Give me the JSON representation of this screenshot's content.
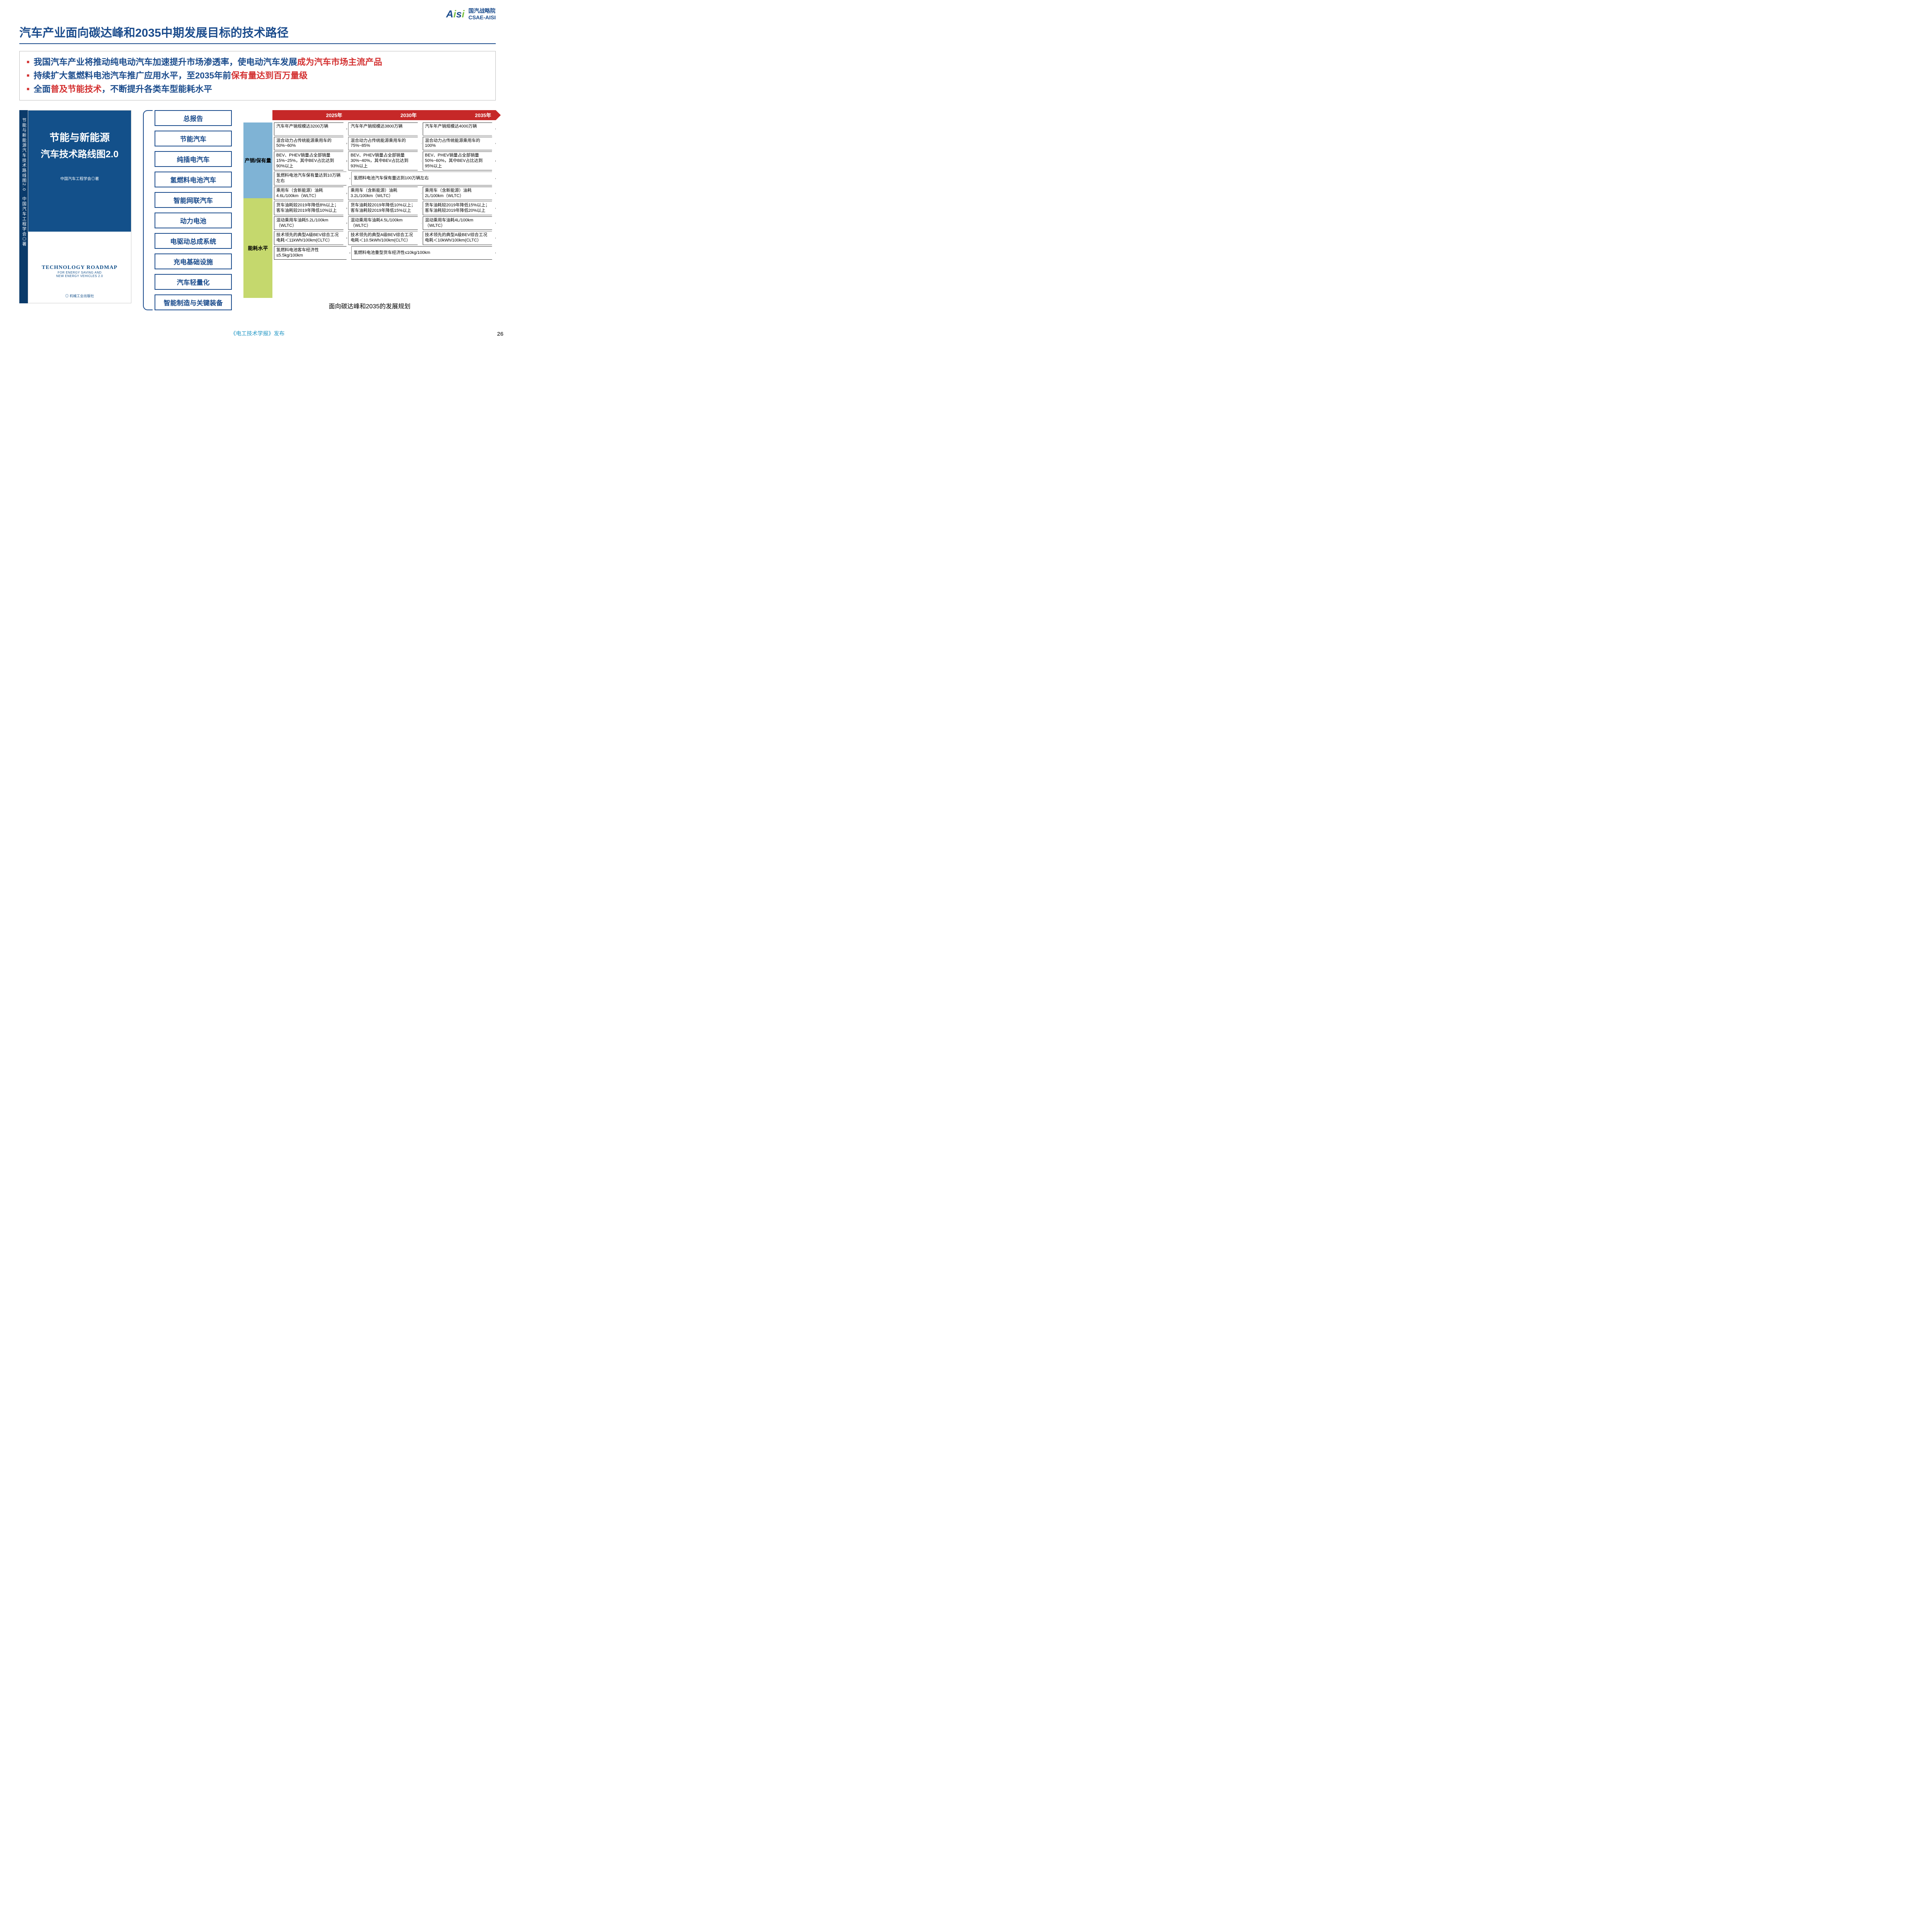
{
  "logo": {
    "aisi": "Aisi",
    "cn_line1": "国汽战略院",
    "cn_line2": "CSAE-AISI"
  },
  "title": "汽车产业面向碳达峰和2035中期发展目标的技术路径",
  "bullets": [
    {
      "pre": "我国汽车产业将推动纯电动汽车加速提升市场渗透率，使电动汽车发展",
      "red": "成为汽车市场主流产品",
      "post": ""
    },
    {
      "pre": "持续扩大氢燃料电池汽车推广应用水平，至2035年前",
      "red": "保有量达到百万量级",
      "post": ""
    },
    {
      "pre": "全面",
      "red": "普及节能技术",
      "post": "，不断提升各类车型能耗水平"
    }
  ],
  "book": {
    "spine": "节能与新能源汽车技术路线图2.0　中国汽车工程学会◎著",
    "title_line1": "节能与新能源",
    "title_line2": "汽车技术路线图2.0",
    "author": "中国汽车工程学会◎著",
    "en_title": "TECHNOLOGY ROADMAP",
    "en_sub1": "FOR ENERGY SAVING AND",
    "en_sub2": "NEW ENERGY VEHICLES 2.0",
    "publisher": "◎ 机械工业出版社"
  },
  "chapters": [
    "总报告",
    "节能汽车",
    "纯插电汽车",
    "氢燃料电池汽车",
    "智能网联汽车",
    "动力电池",
    "电驱动总成系统",
    "充电基础设施",
    "汽车轻量化",
    "智能制造与关键装备"
  ],
  "years": [
    "2025年",
    "2030年",
    "2035年"
  ],
  "categories": {
    "sales": {
      "label": "产销/保有量",
      "color": "#7fb3d5",
      "rows": 4
    },
    "energy": {
      "label": "能耗水平",
      "color": "#c5d86d",
      "rows": 5
    }
  },
  "sales_rows": [
    [
      "汽车年产销规模达3200万辆",
      "汽车年产销规模达3800万辆",
      "汽车年产销规模达4000万辆"
    ],
    [
      "混合动力占传统能源乘用车的50%~60%",
      "混合动力占传统能源乘用车的75%~85%",
      "混合动力占传统能源乘用车的100%"
    ],
    [
      "BEV、PHEV销量占全部销量15%~25%，其中BEV占比达到90%以上",
      "BEV、PHEV销量占全部销量30%~40%，其中BEV占比达到93%以上",
      "BEV、PHEV销量占全部销量50%~60%，其中BEV占比达到95%以上"
    ]
  ],
  "sales_row_split": {
    "c1": "氢燃料电池汽车保有量达到10万辆左右",
    "c23": "氢燃料电池汽车保有量达到100万辆左右"
  },
  "energy_rows": [
    [
      "乘用车（含新能源）油耗4.6L/100km（WLTC）",
      "乘用车（含新能源）油耗3.2L/100km（WLTC）",
      "乘用车（含新能源）油耗2L/100km（WLTC）"
    ],
    [
      "货车油耗较2019年降低8%以上；客车油耗较2019年降低10%以上",
      "货车油耗较2019年降低10%以上；客车油耗较2019年降低15%以上",
      "货车油耗较2019年降低15%以上；客车油耗较2019年降低20%以上"
    ],
    [
      "混动乘用车油耗5.2L/100km（WLTC）",
      "混动乘用车油耗4.5L/100km（WLTC）",
      "混动乘用车油耗4L/100km（WLTC）"
    ],
    [
      "技术领先的典型A级BEV综合工况电耗＜11kWh/100km(CLTC）",
      "技术领先的典型A级BEV综合工况电耗＜10.5kWh/100km(CLTC）",
      "技术领先的典型A级BEV综合工况电耗＜10kWh/100km(CLTC）"
    ]
  ],
  "energy_row_split": {
    "c1": "氢燃料电池客车经济性≤5.5kg/100km",
    "c23": "氢燃料电池重型货车经济性≤10kg/100km"
  },
  "roadmap_caption": "面向碳达峰和2035的发展规划",
  "footer": "《电工技术学报》发布",
  "page_num": "26"
}
